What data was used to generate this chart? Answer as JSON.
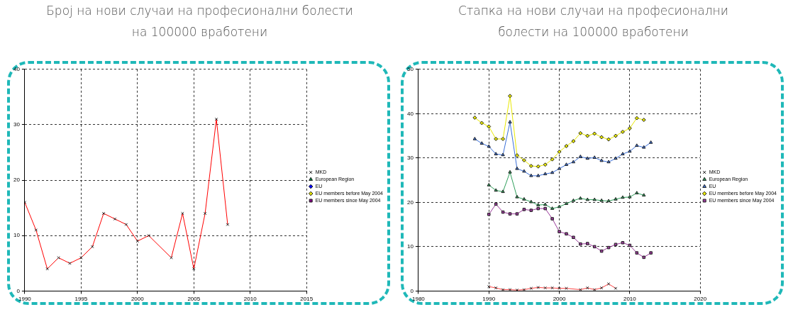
{
  "chart_data": [
    {
      "type": "line",
      "title": "Број на нови случаи на професионални болести на 100000 вработени",
      "xlim": [
        1990,
        2015
      ],
      "xticks": [
        1990,
        1995,
        2000,
        2005,
        2010,
        2015
      ],
      "ylim": [
        0,
        40
      ],
      "yticks": [
        0,
        10,
        20,
        30,
        40
      ],
      "grid": true,
      "legend": "right",
      "line_style": "solid",
      "series": [
        {
          "name": "MKD",
          "color": "#ff0000",
          "marker": "cross",
          "x": [
            1990,
            1991,
            1992,
            1993,
            1994,
            1995,
            1996,
            1997,
            1998,
            1999,
            2000,
            2001,
            2003,
            2004,
            2005,
            2006,
            2007,
            2008
          ],
          "values": [
            16,
            11,
            4,
            6,
            5,
            6,
            8,
            14,
            13,
            12,
            9,
            10,
            6,
            14,
            4,
            14,
            31,
            12
          ]
        },
        {
          "name": "European Region",
          "color": "#008040",
          "marker": "triangle"
        },
        {
          "name": "EU",
          "color": "#0000ff",
          "marker": "diamond"
        },
        {
          "name": "EU members before May 2004",
          "color": "#e0e000",
          "marker": "diamond"
        },
        {
          "name": "EU members since May 2004",
          "color": "#800080",
          "marker": "square"
        }
      ]
    },
    {
      "type": "line",
      "title": "Стапка на нови случаи на професионални болести на 100000 вработени",
      "xlim": [
        1980,
        2020
      ],
      "xticks": [
        1980,
        1990,
        2000,
        2010,
        2020
      ],
      "ylim": [
        0,
        50
      ],
      "yticks": [
        0,
        10,
        20,
        30,
        40,
        50
      ],
      "grid": true,
      "legend": "right",
      "line_style": "solid",
      "series": [
        {
          "name": "MKD",
          "color": "#ff4040",
          "marker": "cross",
          "x": [
            1990,
            1991,
            1992,
            1993,
            1994,
            1995,
            1996,
            1997,
            1998,
            1999,
            2000,
            2001,
            2003,
            2004,
            2005,
            2006,
            2007,
            2008
          ],
          "values": [
            1.0,
            0.7,
            0.3,
            0.3,
            0.2,
            0.3,
            0.6,
            0.8,
            0.7,
            0.7,
            0.6,
            0.6,
            0.3,
            0.7,
            0.3,
            0.7,
            1.6,
            0.6
          ]
        },
        {
          "name": "European Region",
          "color": "#2e9e5a",
          "marker": "triangle",
          "x": [
            1990,
            1991,
            1992,
            1993,
            1994,
            1995,
            1996,
            1997,
            1998,
            1999,
            2000,
            2001,
            2002,
            2003,
            2004,
            2005,
            2006,
            2007,
            2008,
            2009,
            2010,
            2011,
            2012
          ],
          "values": [
            23.9,
            22.7,
            22.4,
            26.8,
            21.2,
            20.7,
            20.1,
            19.4,
            19.5,
            18.6,
            19.0,
            19.7,
            20.4,
            20.9,
            20.6,
            20.6,
            20.4,
            20.3,
            20.7,
            21.1,
            21.2,
            22.1,
            21.6
          ]
        },
        {
          "name": "EU",
          "color": "#3a6fd8",
          "marker": "triangle",
          "x": [
            1988,
            1989,
            1990,
            1991,
            1992,
            1993,
            1994,
            1995,
            1996,
            1997,
            1998,
            1999,
            2000,
            2001,
            2002,
            2003,
            2004,
            2005,
            2006,
            2007,
            2008,
            2009,
            2010,
            2011,
            2012,
            2013
          ],
          "values": [
            34.3,
            33.3,
            32.6,
            30.9,
            30.7,
            38.1,
            27.6,
            27.0,
            26.0,
            26.0,
            26.4,
            26.7,
            27.6,
            28.5,
            29.1,
            30.3,
            29.9,
            30.1,
            29.4,
            29.1,
            29.9,
            30.9,
            31.5,
            32.8,
            32.4,
            33.5
          ]
        },
        {
          "name": "EU members before May 2004",
          "color": "#e8e800",
          "marker": "diamond",
          "x": [
            1988,
            1989,
            1990,
            1991,
            1992,
            1993,
            1994,
            1995,
            1996,
            1997,
            1998,
            1999,
            2000,
            2001,
            2002,
            2003,
            2004,
            2005,
            2006,
            2007,
            2008,
            2009,
            2010,
            2011,
            2012
          ],
          "values": [
            39.1,
            37.9,
            37.1,
            34.3,
            34.3,
            44.0,
            30.6,
            29.5,
            28.2,
            28.1,
            28.5,
            29.7,
            31.4,
            32.7,
            33.8,
            35.6,
            35.0,
            35.5,
            34.7,
            34.2,
            35.0,
            35.9,
            36.7,
            39.0,
            38.6
          ]
        },
        {
          "name": "EU members since May 2004",
          "color": "#9a3a9a",
          "marker": "square",
          "x": [
            1990,
            1991,
            1992,
            1993,
            1994,
            1995,
            1996,
            1997,
            1998,
            1999,
            2000,
            2001,
            2002,
            2003,
            2004,
            2005,
            2006,
            2007,
            2008,
            2009,
            2010,
            2011,
            2012,
            2013
          ],
          "values": [
            17.3,
            19.6,
            17.8,
            17.4,
            17.4,
            18.4,
            18.2,
            18.6,
            18.6,
            16.3,
            13.4,
            12.9,
            12.1,
            10.6,
            10.7,
            10.0,
            9.0,
            9.8,
            10.5,
            10.9,
            10.3,
            8.6,
            7.6,
            8.6
          ]
        }
      ]
    }
  ]
}
